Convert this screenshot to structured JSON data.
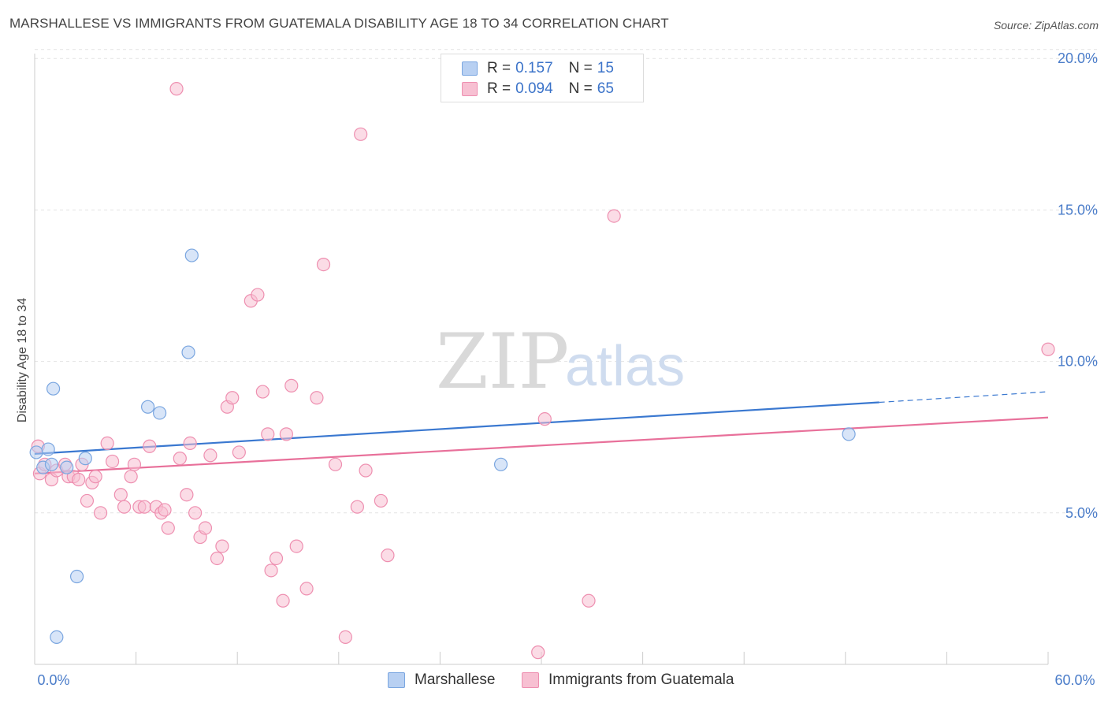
{
  "title": "MARSHALLESE VS IMMIGRANTS FROM GUATEMALA DISABILITY AGE 18 TO 34 CORRELATION CHART",
  "source": "Source: ZipAtlas.com",
  "watermark": {
    "zip": "ZIP",
    "atlas": "atlas"
  },
  "colors": {
    "blue_fill": "#b8d0f2",
    "blue_stroke": "#7aa6e0",
    "blue_line": "#3a78d0",
    "pink_fill": "#f7c0d2",
    "pink_stroke": "#ee8fb0",
    "pink_line": "#e8709a",
    "grid": "#e2e2e2",
    "tick_text": "#4a7cc9"
  },
  "legend": {
    "rows": [
      {
        "r_label": "R =",
        "r_value": "0.157",
        "n_label": "N =",
        "n_value": "15"
      },
      {
        "r_label": "R =",
        "r_value": "0.094",
        "n_label": "N =",
        "n_value": "65"
      }
    ]
  },
  "bottom_legend": [
    "Marshallese",
    "Immigrants from Guatemala"
  ],
  "chart_data": {
    "type": "scatter",
    "xlabel": "",
    "ylabel": "Disability Age 18 to 34",
    "xlim": [
      0,
      60
    ],
    "ylim": [
      0,
      20.5
    ],
    "x_tick_labels": [
      "0.0%",
      "60.0%"
    ],
    "y_ticks": [
      5,
      10,
      15,
      20
    ],
    "y_tick_labels": [
      "5.0%",
      "10.0%",
      "15.0%",
      "20.0%"
    ],
    "grid": true,
    "legend_position": "top-center",
    "series": [
      {
        "name": "Marshallese",
        "r": 0.157,
        "n": 15,
        "points": [
          [
            0.1,
            7.0
          ],
          [
            0.5,
            6.5
          ],
          [
            0.8,
            7.1
          ],
          [
            1.0,
            6.6
          ],
          [
            1.1,
            9.1
          ],
          [
            1.3,
            0.9
          ],
          [
            1.9,
            6.5
          ],
          [
            2.5,
            2.9
          ],
          [
            3.0,
            6.8
          ],
          [
            6.7,
            8.5
          ],
          [
            7.4,
            8.3
          ],
          [
            9.1,
            10.3
          ],
          [
            9.3,
            13.5
          ],
          [
            27.6,
            6.6
          ],
          [
            48.2,
            7.6
          ]
        ],
        "trend": {
          "x0": 0,
          "y0": 6.95,
          "x1": 50,
          "y1": 8.65,
          "dash_x1": 60,
          "dash_y1": 9.0
        }
      },
      {
        "name": "Immigrants from Guatemala",
        "r": 0.094,
        "n": 65,
        "points": [
          [
            0.2,
            7.2
          ],
          [
            0.3,
            6.3
          ],
          [
            1.0,
            6.1
          ],
          [
            1.3,
            6.4
          ],
          [
            1.8,
            6.6
          ],
          [
            2.0,
            6.2
          ],
          [
            2.3,
            6.2
          ],
          [
            2.8,
            6.6
          ],
          [
            3.1,
            5.4
          ],
          [
            3.4,
            6.0
          ],
          [
            3.6,
            6.2
          ],
          [
            3.9,
            5.0
          ],
          [
            4.3,
            7.3
          ],
          [
            4.6,
            6.7
          ],
          [
            5.1,
            5.6
          ],
          [
            5.3,
            5.2
          ],
          [
            5.7,
            6.2
          ],
          [
            5.9,
            6.6
          ],
          [
            6.2,
            5.2
          ],
          [
            6.5,
            5.2
          ],
          [
            6.8,
            7.2
          ],
          [
            7.2,
            5.2
          ],
          [
            7.5,
            5.0
          ],
          [
            7.7,
            5.1
          ],
          [
            7.9,
            4.5
          ],
          [
            8.4,
            19.0
          ],
          [
            8.6,
            6.8
          ],
          [
            9.0,
            5.6
          ],
          [
            9.2,
            7.3
          ],
          [
            9.5,
            5.0
          ],
          [
            9.8,
            4.2
          ],
          [
            10.1,
            4.5
          ],
          [
            10.4,
            6.9
          ],
          [
            10.8,
            3.5
          ],
          [
            11.1,
            3.9
          ],
          [
            11.4,
            8.5
          ],
          [
            11.7,
            8.8
          ],
          [
            12.1,
            7.0
          ],
          [
            12.8,
            12.0
          ],
          [
            13.2,
            12.2
          ],
          [
            13.5,
            9.0
          ],
          [
            13.8,
            7.6
          ],
          [
            14.0,
            3.1
          ],
          [
            14.3,
            3.5
          ],
          [
            14.7,
            2.1
          ],
          [
            14.9,
            7.6
          ],
          [
            15.2,
            9.2
          ],
          [
            15.5,
            3.9
          ],
          [
            16.1,
            2.5
          ],
          [
            16.7,
            8.8
          ],
          [
            17.1,
            13.2
          ],
          [
            17.8,
            6.6
          ],
          [
            18.4,
            0.9
          ],
          [
            19.1,
            5.2
          ],
          [
            19.3,
            17.5
          ],
          [
            19.6,
            6.4
          ],
          [
            20.5,
            5.4
          ],
          [
            20.9,
            3.6
          ],
          [
            29.8,
            0.4
          ],
          [
            30.2,
            8.1
          ],
          [
            32.8,
            2.1
          ],
          [
            34.3,
            14.8
          ],
          [
            60.0,
            10.4
          ],
          [
            0.6,
            6.6
          ],
          [
            2.6,
            6.1
          ]
        ],
        "trend": {
          "x0": 0,
          "y0": 6.3,
          "x1": 60,
          "y1": 8.15
        }
      }
    ]
  }
}
